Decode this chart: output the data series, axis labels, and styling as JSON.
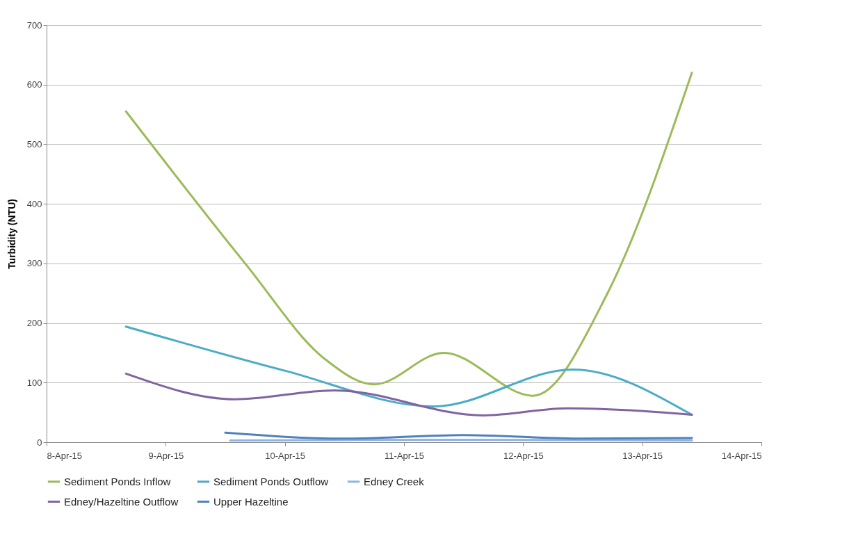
{
  "chart_data": {
    "type": "line",
    "ylabel": "Turbidity (NTU)",
    "xlim": [
      "--04-08",
      "--04-14"
    ],
    "xticks": [
      {
        "value": "--04-08",
        "label": "8-Apr-15"
      },
      {
        "value": "--04-09",
        "label": "9-Apr-15"
      },
      {
        "value": "--04-10",
        "label": "10-Apr-15"
      },
      {
        "value": "--04-11",
        "label": "11-Apr-15"
      },
      {
        "value": "--04-12",
        "label": "12-Apr-15"
      },
      {
        "value": "--04-13",
        "label": "13-Apr-15"
      },
      {
        "value": "--04-14",
        "label": "14-Apr-15"
      }
    ],
    "ylim": [
      0,
      700
    ],
    "yticks": [
      0,
      100,
      200,
      300,
      400,
      500,
      600,
      700
    ],
    "grid": "y",
    "legend": "bottom",
    "marker": "none",
    "line_style": "solid",
    "series": [
      {
        "name": "Sediment Ponds Inflow",
        "color": "#9bbb59",
        "x": [
          "--04-08T16:00",
          "--04-09T16:00",
          "--04-10T08:00",
          "--04-10T18:00",
          "--04-11T08:00",
          "--04-12T02:00",
          "--04-12T17:00",
          "--04-13T10:00"
        ],
        "values": [
          555,
          300,
          140,
          97,
          150,
          78,
          250,
          620
        ]
      },
      {
        "name": "Sediment Ponds Outflow",
        "color": "#4bacc6",
        "x": [
          "--04-08T16:00",
          "--04-10T00:00",
          "--04-11T06:00",
          "--04-12T10:00",
          "--04-13T10:00"
        ],
        "values": [
          194,
          120,
          60,
          122,
          46
        ]
      },
      {
        "name": "Edney Creek",
        "color": "#8eb4e3",
        "x": [
          "--04-09T13:00",
          "--04-11T12:00",
          "--04-13T10:00"
        ],
        "values": [
          3,
          4,
          3
        ]
      },
      {
        "name": "Edney/Hazeltine Outflow",
        "color": "#8064a2",
        "x": [
          "--04-08T16:00",
          "--04-09T14:00",
          "--04-10T10:00",
          "--04-11T16:00",
          "--04-12T09:00",
          "--04-13T10:00"
        ],
        "values": [
          115,
          72,
          87,
          45,
          57,
          46
        ]
      },
      {
        "name": "Upper Hazeltine",
        "color": "#4f81bd",
        "x": [
          "--04-09T12:00",
          "--04-10T12:00",
          "--04-11T12:00",
          "--04-12T12:00",
          "--04-13T10:00"
        ],
        "values": [
          16,
          6,
          12,
          6,
          7
        ]
      }
    ]
  }
}
